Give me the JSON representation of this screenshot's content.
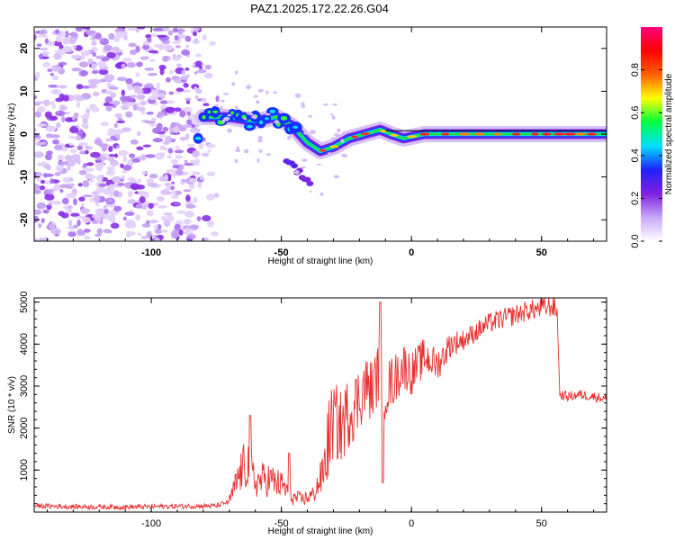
{
  "title": "PAZ1.2025.172.22.26.G04",
  "chart_data": [
    {
      "type": "heatmap",
      "xlabel": "Height of straight line (km)",
      "ylabel": "Frequency (Hz)",
      "xlim": [
        -145,
        75
      ],
      "ylim": [
        -25,
        25
      ],
      "x_ticks": [
        {
          "value": -100,
          "label": "-100"
        },
        {
          "value": -50,
          "label": "-50"
        },
        {
          "value": 0,
          "label": "0"
        },
        {
          "value": 50,
          "label": "50"
        }
      ],
      "y_ticks": [
        {
          "value": 20,
          "label": "20"
        },
        {
          "value": 10,
          "label": "10"
        },
        {
          "value": 0,
          "label": "0"
        },
        {
          "value": -10,
          "label": "-10"
        },
        {
          "value": -20,
          "label": "-20"
        }
      ],
      "colorbar": {
        "label": "Normalized spectral amplitude",
        "range": [
          0,
          1
        ],
        "ticks": [
          {
            "value": 0.0,
            "label": "0.0"
          },
          {
            "value": 0.2,
            "label": "0.2"
          },
          {
            "value": 0.4,
            "label": "0.4"
          },
          {
            "value": 0.6,
            "label": "0.6"
          },
          {
            "value": 0.8,
            "label": "0.8"
          }
        ],
        "colors": [
          "#ffffff",
          "#c8a8f8",
          "#8020e0",
          "#2020ff",
          "#00e0ff",
          "#00ff40",
          "#ffff00",
          "#ff6000",
          "#ff0000",
          "#ff0080"
        ]
      },
      "dominant_frequency_track": [
        {
          "x": -80,
          "y": 4
        },
        {
          "x": -70,
          "y": 4
        },
        {
          "x": -60,
          "y": 3
        },
        {
          "x": -52,
          "y": 4
        },
        {
          "x": -46,
          "y": 2
        },
        {
          "x": -40,
          "y": -2
        },
        {
          "x": -35,
          "y": -4
        },
        {
          "x": -30,
          "y": -3
        },
        {
          "x": -24,
          "y": -1
        },
        {
          "x": -18,
          "y": 0
        },
        {
          "x": -12,
          "y": 1
        },
        {
          "x": -8,
          "y": 0
        },
        {
          "x": -3,
          "y": -1
        },
        {
          "x": 5,
          "y": 0
        },
        {
          "x": 20,
          "y": 0
        },
        {
          "x": 50,
          "y": 0
        },
        {
          "x": 75,
          "y": 0
        }
      ],
      "secondary_feature": {
        "x_range": [
          -48,
          -38
        ],
        "y_range": [
          -12,
          -6
        ]
      },
      "noise_region_x": [
        -145,
        -75
      ]
    },
    {
      "type": "line",
      "xlabel": "Height of straight line (km)",
      "ylabel": "SNR (10 * v/v)",
      "xlim": [
        -145,
        75
      ],
      "ylim": [
        0,
        5100
      ],
      "line_color": "#e83030",
      "x_ticks": [
        {
          "value": -100,
          "label": "-100"
        },
        {
          "value": -50,
          "label": "-50"
        },
        {
          "value": 0,
          "label": "0"
        },
        {
          "value": 50,
          "label": "50"
        }
      ],
      "y_ticks": [
        {
          "value": 1000,
          "label": "1000"
        },
        {
          "value": 2000,
          "label": "2000"
        },
        {
          "value": 3000,
          "label": "3000"
        },
        {
          "value": 4000,
          "label": "4000"
        },
        {
          "value": 5000,
          "label": "5000"
        }
      ],
      "series": [
        {
          "x": [
            -145,
            -130,
            -110,
            -90,
            -75,
            -70,
            -66,
            -63,
            -60,
            -56,
            -52,
            -49,
            -46,
            -42,
            -38,
            -34,
            -32,
            -30,
            -27,
            -24,
            -21,
            -18,
            -15,
            -13,
            -11,
            -9,
            -6,
            -3,
            0,
            5,
            10,
            15,
            20,
            25,
            30,
            35,
            40,
            45,
            50,
            54,
            56,
            57,
            60,
            65,
            70,
            75
          ],
          "values": [
            150,
            130,
            120,
            140,
            150,
            250,
            900,
            1200,
            700,
            800,
            700,
            600,
            350,
            300,
            400,
            900,
            1700,
            2200,
            2000,
            2400,
            2600,
            3000,
            2900,
            3300,
            2800,
            3000,
            3200,
            3500,
            3300,
            3700,
            3500,
            4000,
            4100,
            4300,
            4500,
            4600,
            4700,
            4800,
            4850,
            4900,
            4800,
            2800,
            2750,
            2800,
            2750,
            2700
          ],
          "spikes": [
            {
              "x": -62,
              "value": 2300
            },
            {
              "x": -47,
              "value": 1400
            },
            {
              "x": -12,
              "value": 5000
            },
            {
              "x": -11,
              "value": 700
            }
          ]
        }
      ]
    }
  ]
}
